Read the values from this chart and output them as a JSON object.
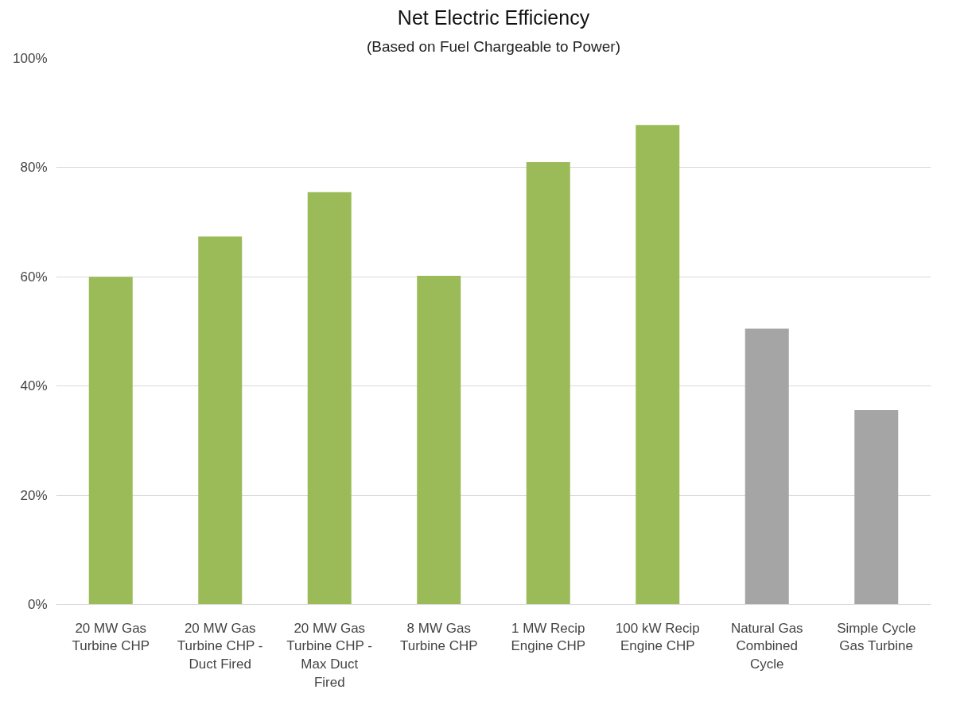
{
  "chart_data": {
    "type": "bar",
    "title": "Net Electric Efficiency",
    "subtitle": "(Based on Fuel Chargeable to Power)",
    "categories": [
      "20 MW Gas Turbine CHP",
      "20 MW Gas Turbine CHP - Duct Fired",
      "20 MW Gas Turbine CHP - Max Duct Fired",
      "8 MW Gas Turbine CHP",
      "1 MW Recip Engine CHP",
      "100 kW Recip Engine CHP",
      "Natural Gas Combined Cycle",
      "Simple Cycle Gas Turbine"
    ],
    "values": [
      60,
      67.4,
      75.5,
      60.2,
      81,
      87.8,
      50.5,
      35.6
    ],
    "colors": [
      "#9bbb59",
      "#9bbb59",
      "#9bbb59",
      "#9bbb59",
      "#9bbb59",
      "#9bbb59",
      "#a5a5a5",
      "#a5a5a5"
    ],
    "ylim": [
      0,
      100
    ],
    "yticks": [
      {
        "value": 0,
        "label": "0%"
      },
      {
        "value": 20,
        "label": "20%"
      },
      {
        "value": 40,
        "label": "40%"
      },
      {
        "value": 60,
        "label": "60%"
      },
      {
        "value": 80,
        "label": "80%"
      },
      {
        "value": 100,
        "label": "100%"
      }
    ],
    "grid": "y"
  }
}
